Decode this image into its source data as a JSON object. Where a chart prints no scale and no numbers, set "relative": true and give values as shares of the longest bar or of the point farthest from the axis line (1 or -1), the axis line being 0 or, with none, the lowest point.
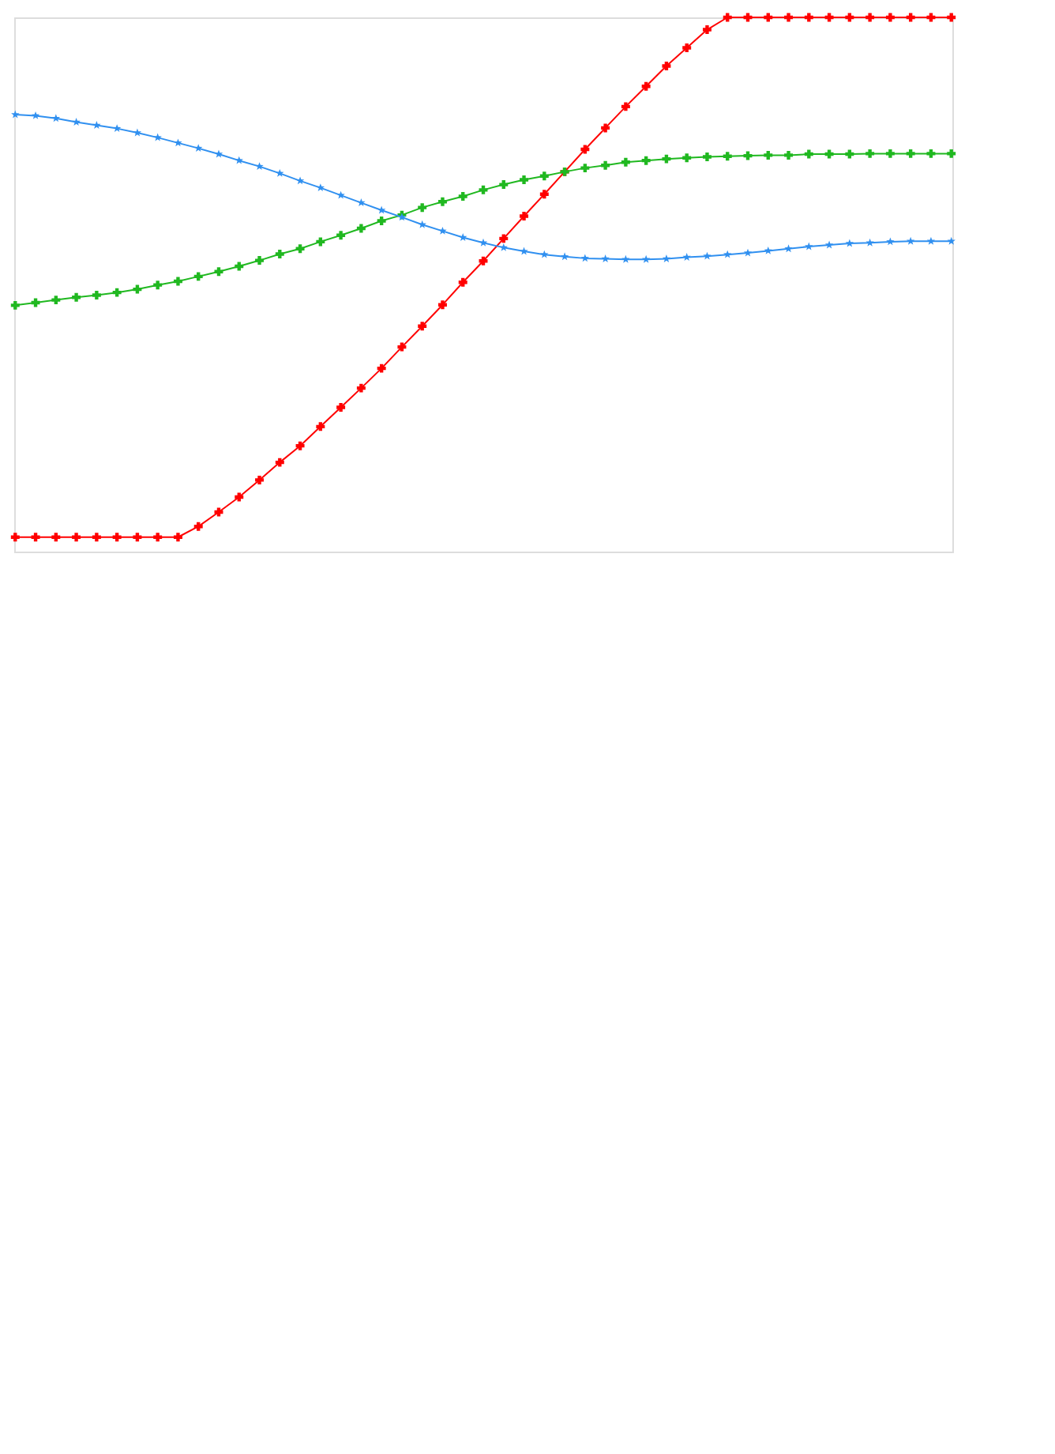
{
  "chart_data": {
    "type": "line",
    "relative": true,
    "categories": [
      null,
      null,
      null,
      null,
      null,
      null,
      null,
      null,
      null,
      null,
      null,
      null,
      null,
      null,
      null,
      null,
      null,
      null,
      null,
      null,
      null,
      null,
      null,
      null,
      null,
      null,
      null,
      null,
      null,
      null,
      null,
      null,
      null,
      null,
      null,
      null,
      null,
      null,
      null,
      null,
      null,
      null,
      null,
      null,
      null,
      null,
      null
    ],
    "grid": false,
    "line_style": "solid",
    "series": [
      {
        "color": "#ff0000",
        "marker": "cross",
        "values": [
          0.027,
          0.027,
          0.027,
          0.027,
          0.027,
          0.027,
          0.027,
          0.027,
          0.027,
          0.047,
          0.074,
          0.102,
          0.134,
          0.167,
          0.198,
          0.234,
          0.27,
          0.306,
          0.343,
          0.383,
          0.422,
          0.462,
          0.504,
          0.544,
          0.586,
          0.628,
          0.669,
          0.711,
          0.753,
          0.793,
          0.833,
          0.871,
          0.909,
          0.943,
          0.977,
          1,
          1,
          1,
          1,
          1,
          1,
          1,
          1,
          1,
          1,
          1,
          1
        ]
      },
      {
        "color": "#20b820",
        "marker": "cross",
        "values": [
          0.461,
          0.466,
          0.471,
          0.476,
          0.48,
          0.485,
          0.491,
          0.499,
          0.506,
          0.515,
          0.524,
          0.534,
          0.545,
          0.557,
          0.567,
          0.58,
          0.592,
          0.605,
          0.619,
          0.63,
          0.644,
          0.655,
          0.665,
          0.677,
          0.687,
          0.696,
          0.703,
          0.711,
          0.718,
          0.723,
          0.729,
          0.732,
          0.735,
          0.737,
          0.739,
          0.74,
          0.741,
          0.742,
          0.742,
          0.744,
          0.744,
          0.744,
          0.745,
          0.745,
          0.745,
          0.745,
          0.745
        ]
      },
      {
        "color": "#3090f0",
        "marker": "star",
        "values": [
          0.818,
          0.816,
          0.811,
          0.804,
          0.798,
          0.792,
          0.784,
          0.775,
          0.765,
          0.755,
          0.744,
          0.732,
          0.721,
          0.708,
          0.694,
          0.681,
          0.667,
          0.653,
          0.639,
          0.626,
          0.612,
          0.6,
          0.588,
          0.578,
          0.569,
          0.562,
          0.556,
          0.552,
          0.549,
          0.548,
          0.547,
          0.547,
          0.548,
          0.551,
          0.553,
          0.556,
          0.559,
          0.563,
          0.567,
          0.571,
          0.574,
          0.577,
          0.578,
          0.58,
          0.581,
          0.581,
          0.581
        ]
      }
    ]
  }
}
